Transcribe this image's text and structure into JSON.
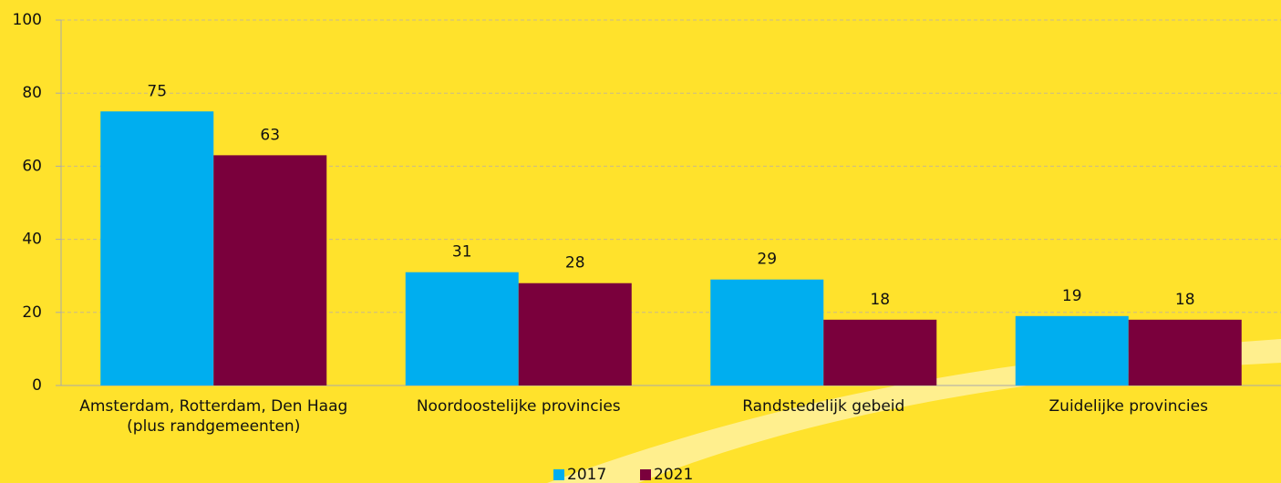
{
  "chart_data": {
    "type": "bar",
    "categories": [
      "Amsterdam, Rotterdam, Den Haag (plus randgemeenten)",
      "Noordoostelijke provincies",
      "Randstedelijk gebeid",
      "Zuidelijke provincies"
    ],
    "series": [
      {
        "name": "2017",
        "color": "#00aeef",
        "values": [
          75,
          31,
          29,
          19
        ]
      },
      {
        "name": "2021",
        "color": "#7a003c",
        "values": [
          63,
          28,
          18,
          18
        ]
      }
    ],
    "ylim": [
      0,
      100
    ],
    "yticks": [
      0,
      20,
      40,
      60,
      80,
      100
    ],
    "grid": true,
    "legend": "bottom"
  }
}
